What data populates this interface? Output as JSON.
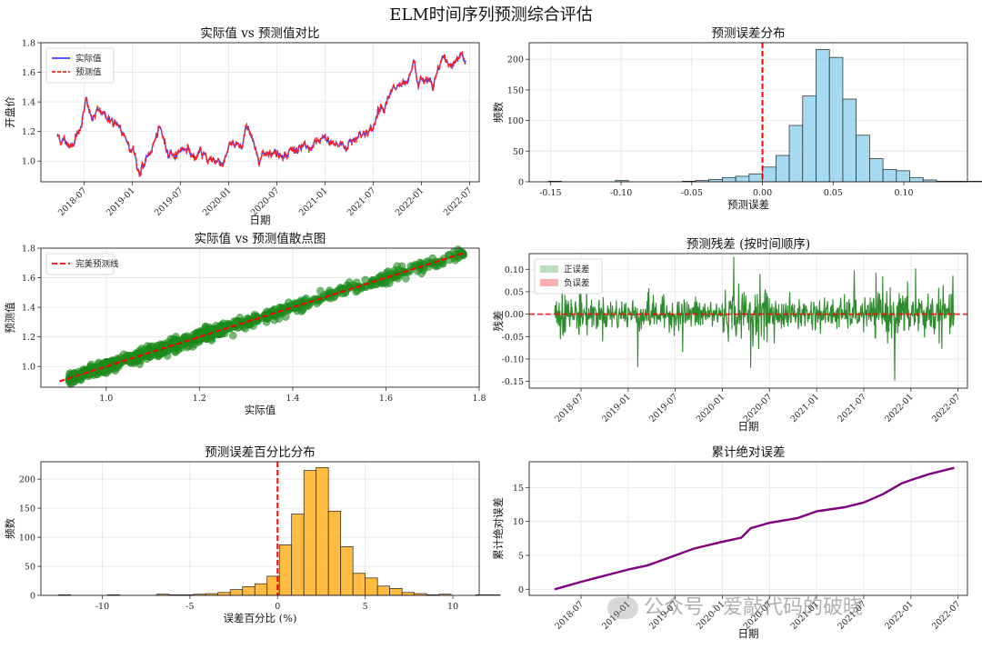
{
  "figure": {
    "title": "ELM时间序列预测综合评估"
  },
  "watermark": {
    "text": "公众号 · 爱敲代码的破晓",
    "icon": "wechat-icon"
  },
  "colors": {
    "actual": "#3b3bff",
    "predicted": "#ff1f1f",
    "scatter": "#1a8a1a",
    "hist_error": "#87ceeb",
    "residual": "#2e8b2e",
    "pos_fill": "#a8d8a8",
    "neg_fill": "#ff9a9a",
    "hist_pct": "#ffa500",
    "cumulative": "#800080",
    "ref_line": "#ff0000"
  },
  "chart_data": [
    {
      "id": "actual_vs_pred",
      "type": "line",
      "title": "实际值 vs 预测值对比",
      "xlabel": "日期",
      "ylabel": "开盘价",
      "xlim": [
        2018.05,
        2022.6
      ],
      "ylim": [
        0.86,
        1.8
      ],
      "xticks": [
        2018.5,
        2019.0,
        2019.5,
        2020.0,
        2020.5,
        2021.0,
        2021.5,
        2022.0,
        2022.5
      ],
      "xtick_labels": [
        "2018-07",
        "2019-01",
        "2019-07",
        "2020-01",
        "2020-07",
        "2021-01",
        "2021-07",
        "2022-01",
        "2022-07"
      ],
      "yticks": [
        1.0,
        1.2,
        1.4,
        1.6,
        1.8
      ],
      "ytick_labels": [
        "1.0",
        "1.2",
        "1.4",
        "1.6",
        "1.8"
      ],
      "legend": [
        "实际值",
        "预测值"
      ],
      "anchors": [
        [
          2018.22,
          1.18
        ],
        [
          2018.3,
          1.13
        ],
        [
          2018.36,
          1.11
        ],
        [
          2018.45,
          1.22
        ],
        [
          2018.52,
          1.4
        ],
        [
          2018.58,
          1.28
        ],
        [
          2018.68,
          1.35
        ],
        [
          2018.8,
          1.25
        ],
        [
          2018.9,
          1.18
        ],
        [
          2019.0,
          1.1
        ],
        [
          2019.07,
          0.92
        ],
        [
          2019.15,
          1.0
        ],
        [
          2019.22,
          1.12
        ],
        [
          2019.3,
          1.2
        ],
        [
          2019.36,
          1.07
        ],
        [
          2019.45,
          1.05
        ],
        [
          2019.55,
          1.1
        ],
        [
          2019.65,
          1.02
        ],
        [
          2019.75,
          1.04
        ],
        [
          2019.85,
          1.0
        ],
        [
          2019.95,
          1.0
        ],
        [
          2020.0,
          1.12
        ],
        [
          2020.08,
          1.09
        ],
        [
          2020.14,
          1.1
        ],
        [
          2020.2,
          1.26
        ],
        [
          2020.25,
          1.13
        ],
        [
          2020.3,
          1.03
        ],
        [
          2020.4,
          1.08
        ],
        [
          2020.5,
          1.05
        ],
        [
          2020.6,
          1.06
        ],
        [
          2020.7,
          1.08
        ],
        [
          2020.85,
          1.08
        ],
        [
          2021.0,
          1.15
        ],
        [
          2021.1,
          1.12
        ],
        [
          2021.2,
          1.1
        ],
        [
          2021.3,
          1.15
        ],
        [
          2021.4,
          1.2
        ],
        [
          2021.5,
          1.2
        ],
        [
          2021.55,
          1.35
        ],
        [
          2021.65,
          1.42
        ],
        [
          2021.75,
          1.5
        ],
        [
          2021.85,
          1.48
        ],
        [
          2021.92,
          1.65
        ],
        [
          2021.97,
          1.52
        ],
        [
          2022.05,
          1.55
        ],
        [
          2022.12,
          1.5
        ],
        [
          2022.22,
          1.7
        ],
        [
          2022.3,
          1.65
        ],
        [
          2022.4,
          1.72
        ],
        [
          2022.46,
          1.68
        ]
      ]
    },
    {
      "id": "error_hist",
      "type": "bar",
      "title": "预测误差分布",
      "xlabel": "预测误差",
      "ylabel": "频数",
      "xlim": [
        -0.165,
        0.145
      ],
      "ylim": [
        0,
        227
      ],
      "xticks": [
        -0.15,
        -0.1,
        -0.05,
        0.0,
        0.05,
        0.1
      ],
      "xtick_labels": [
        "-0.15",
        "-0.10",
        "-0.05",
        "0.00",
        "0.05",
        "0.10"
      ],
      "yticks": [
        0,
        50,
        100,
        150,
        200
      ],
      "ytick_labels": [
        "0",
        "50",
        "100",
        "150",
        "200"
      ],
      "bin_start": -0.1515,
      "bin_width": 0.00947,
      "values": [
        1,
        0,
        0,
        0,
        0,
        2,
        0,
        0,
        0,
        0,
        1,
        2,
        4,
        7,
        9,
        13,
        24,
        43,
        92,
        140,
        216,
        203,
        135,
        76,
        38,
        20,
        18,
        7,
        3,
        1,
        1,
        1,
        1
      ],
      "vline": 0.0
    },
    {
      "id": "scatter",
      "type": "scatter",
      "title": "实际值 vs 预测值散点图",
      "xlabel": "实际值",
      "ylabel": "预测值",
      "xlim": [
        0.86,
        1.8
      ],
      "ylim": [
        0.86,
        1.8
      ],
      "xticks": [
        1.0,
        1.2,
        1.4,
        1.6,
        1.8
      ],
      "xtick_labels": [
        "1.0",
        "1.2",
        "1.4",
        "1.6",
        "1.8"
      ],
      "yticks": [
        1.0,
        1.2,
        1.4,
        1.6,
        1.8
      ],
      "ytick_labels": [
        "1.0",
        "1.2",
        "1.4",
        "1.6",
        "1.8"
      ],
      "legend": [
        "完美预测线"
      ],
      "line": [
        0.9,
        1.77
      ]
    },
    {
      "id": "residuals",
      "type": "line",
      "title": "预测残差 (按时间顺序)",
      "xlabel": "日期",
      "ylabel": "残差",
      "xlim": [
        2017.95,
        2022.6
      ],
      "ylim": [
        -0.165,
        0.135
      ],
      "xticks": [
        2018.5,
        2019.0,
        2019.5,
        2020.0,
        2020.5,
        2021.0,
        2021.5,
        2022.0,
        2022.5
      ],
      "xtick_labels": [
        "2018-07",
        "2019-01",
        "2019-07",
        "2020-01",
        "2020-07",
        "2021-01",
        "2021-07",
        "2022-01",
        "2022-07"
      ],
      "yticks": [
        -0.15,
        -0.1,
        -0.05,
        0.0,
        0.05,
        0.1
      ],
      "ytick_labels": [
        "-0.15",
        "-0.10",
        "-0.05",
        "0.00",
        "0.05",
        "0.10"
      ],
      "legend": [
        "正误差",
        "负误差"
      ],
      "spikes": [
        [
          2020.12,
          0.128
        ],
        [
          2020.3,
          -0.12
        ],
        [
          2021.83,
          -0.148
        ],
        [
          2019.1,
          -0.118
        ],
        [
          2019.58,
          -0.085
        ],
        [
          2021.7,
          0.085
        ],
        [
          2021.4,
          0.098
        ],
        [
          2022.05,
          0.102
        ],
        [
          2020.55,
          -0.065
        ],
        [
          2018.3,
          0.075
        ],
        [
          2018.5,
          0.068
        ],
        [
          2020.4,
          0.09
        ],
        [
          2019.22,
          0.058
        ]
      ]
    },
    {
      "id": "pct_hist",
      "type": "bar",
      "title": "预测误差百分比分布",
      "xlabel": "误差百分比 (%)",
      "ylabel": "频数",
      "xlim": [
        -13.5,
        11.5
      ],
      "ylim": [
        0,
        230
      ],
      "xticks": [
        -10,
        -5,
        0,
        5,
        10
      ],
      "xtick_labels": [
        "-10",
        "-5",
        "0",
        "5",
        "10"
      ],
      "yticks": [
        0,
        50,
        100,
        150,
        200
      ],
      "ytick_labels": [
        "0",
        "50",
        "100",
        "150",
        "200"
      ],
      "bin_start": -12.5,
      "bin_width": 0.7,
      "values": [
        1,
        0,
        0,
        0,
        1,
        0,
        0,
        0,
        2,
        1,
        1,
        2,
        3,
        5,
        10,
        15,
        20,
        33,
        87,
        140,
        215,
        220,
        145,
        84,
        38,
        30,
        16,
        12,
        5,
        3,
        1,
        2,
        0,
        0,
        1,
        1
      ],
      "vline": 0.0
    },
    {
      "id": "cumulative",
      "type": "line",
      "title": "累计绝对误差",
      "xlabel": "日期",
      "ylabel": "累计绝对误差",
      "xlim": [
        2017.95,
        2022.6
      ],
      "ylim": [
        -0.9,
        18.8
      ],
      "xticks": [
        2018.5,
        2019.0,
        2019.5,
        2020.0,
        2020.5,
        2021.0,
        2021.5,
        2022.0,
        2022.5
      ],
      "xtick_labels": [
        "2018-07",
        "2019-01",
        "2019-07",
        "2020-01",
        "2020-07",
        "2021-01",
        "2021-07",
        "2022-01",
        "2022-07"
      ],
      "yticks": [
        0,
        5,
        10,
        15
      ],
      "ytick_labels": [
        "0",
        "5",
        "10",
        "15"
      ],
      "points": [
        [
          2018.22,
          0.0
        ],
        [
          2018.5,
          1.1
        ],
        [
          2019.0,
          2.9
        ],
        [
          2019.2,
          3.5
        ],
        [
          2019.5,
          5.0
        ],
        [
          2019.7,
          6.0
        ],
        [
          2020.0,
          7.0
        ],
        [
          2020.2,
          7.6
        ],
        [
          2020.3,
          9.0
        ],
        [
          2020.5,
          9.8
        ],
        [
          2020.8,
          10.5
        ],
        [
          2021.0,
          11.5
        ],
        [
          2021.3,
          12.1
        ],
        [
          2021.5,
          12.8
        ],
        [
          2021.7,
          14.0
        ],
        [
          2021.9,
          15.6
        ],
        [
          2022.0,
          16.1
        ],
        [
          2022.2,
          17.0
        ],
        [
          2022.46,
          17.9
        ]
      ]
    }
  ]
}
